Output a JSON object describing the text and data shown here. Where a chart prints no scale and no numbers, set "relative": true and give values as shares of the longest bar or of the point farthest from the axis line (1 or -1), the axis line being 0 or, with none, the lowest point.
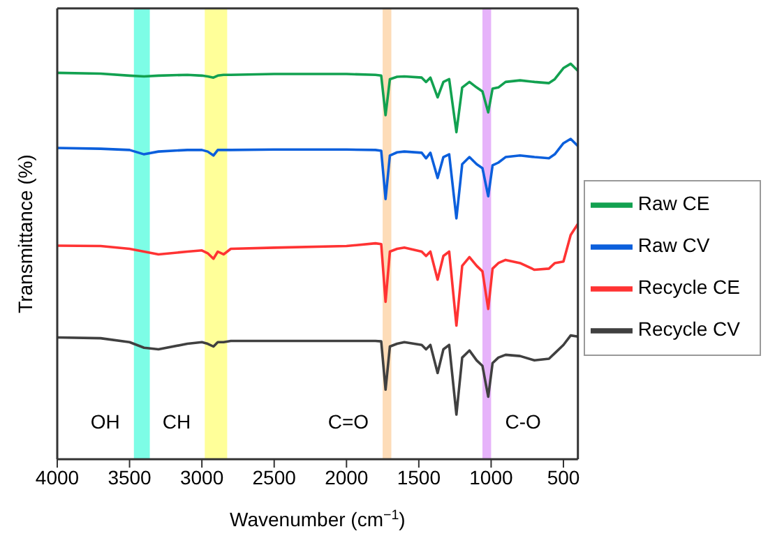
{
  "chart_data": {
    "type": "line",
    "relative": true,
    "xlabel": "Wavenumber (cm$^{−1}$)",
    "ylabel": "Transmittance (%)",
    "xlim": [
      4000,
      400
    ],
    "xticks": [
      4000,
      3500,
      3000,
      2500,
      2000,
      1500,
      1000,
      500
    ],
    "legend": "right",
    "marker": "none",
    "line_style": "solid",
    "x": [
      4000,
      3700,
      3500,
      3400,
      3300,
      3100,
      3000,
      2960,
      2920,
      2890,
      2850,
      2800,
      2500,
      2000,
      1800,
      1760,
      1730,
      1700,
      1650,
      1600,
      1480,
      1450,
      1420,
      1370,
      1330,
      1290,
      1240,
      1200,
      1150,
      1100,
      1060,
      1020,
      990,
      950,
      900,
      800,
      700,
      600,
      560,
      500,
      450,
      400
    ],
    "series": [
      {
        "name": "Raw CE",
        "color": "#12a150",
        "values": [
          0.977,
          0.975,
          0.97,
          0.968,
          0.97,
          0.972,
          0.97,
          0.968,
          0.965,
          0.97,
          0.972,
          0.972,
          0.974,
          0.974,
          0.972,
          0.97,
          0.87,
          0.961,
          0.967,
          0.968,
          0.965,
          0.954,
          0.965,
          0.915,
          0.954,
          0.961,
          0.827,
          0.94,
          0.954,
          0.94,
          0.93,
          0.877,
          0.937,
          0.94,
          0.954,
          0.958,
          0.954,
          0.951,
          0.961,
          0.989,
          1.0,
          0.982
        ]
      },
      {
        "name": "Raw CV",
        "color": "#0b5fdc",
        "values": [
          0.787,
          0.785,
          0.782,
          0.771,
          0.778,
          0.782,
          0.782,
          0.778,
          0.768,
          0.782,
          0.782,
          0.782,
          0.783,
          0.783,
          0.782,
          0.78,
          0.658,
          0.768,
          0.776,
          0.778,
          0.775,
          0.761,
          0.775,
          0.711,
          0.764,
          0.771,
          0.609,
          0.746,
          0.764,
          0.746,
          0.736,
          0.665,
          0.743,
          0.75,
          0.764,
          0.768,
          0.764,
          0.761,
          0.771,
          0.799,
          0.81,
          0.792
        ]
      },
      {
        "name": "Recycle CE",
        "color": "#ff3333",
        "values": [
          0.54,
          0.539,
          0.532,
          0.525,
          0.518,
          0.525,
          0.528,
          0.521,
          0.507,
          0.525,
          0.518,
          0.532,
          0.535,
          0.539,
          0.546,
          0.544,
          0.398,
          0.525,
          0.532,
          0.535,
          0.525,
          0.514,
          0.525,
          0.454,
          0.514,
          0.525,
          0.338,
          0.489,
          0.511,
          0.489,
          0.475,
          0.38,
          0.482,
          0.496,
          0.504,
          0.496,
          0.479,
          0.482,
          0.496,
          0.5,
          0.567,
          0.595
        ]
      },
      {
        "name": "Recycle CV",
        "color": "#404040",
        "values": [
          0.308,
          0.306,
          0.296,
          0.282,
          0.278,
          0.292,
          0.296,
          0.292,
          0.285,
          0.296,
          0.296,
          0.299,
          0.299,
          0.299,
          0.299,
          0.298,
          0.176,
          0.285,
          0.292,
          0.296,
          0.289,
          0.278,
          0.289,
          0.218,
          0.278,
          0.289,
          0.113,
          0.257,
          0.275,
          0.25,
          0.236,
          0.158,
          0.243,
          0.257,
          0.264,
          0.261,
          0.25,
          0.254,
          0.268,
          0.289,
          0.313,
          0.31
        ]
      }
    ],
    "bands": [
      {
        "axis": "x",
        "from": 3470,
        "to": 3360,
        "color": "#7dfde6",
        "label": "OH"
      },
      {
        "axis": "x",
        "from": 2980,
        "to": 2825,
        "color": "#ffff99",
        "label": "CH"
      },
      {
        "axis": "x",
        "from": 1750,
        "to": 1690,
        "color": "#fddcb8",
        "label": "C=O"
      },
      {
        "axis": "x",
        "from": 1060,
        "to": 1000,
        "color": "#e6b3fa",
        "label": "C-O"
      }
    ]
  }
}
